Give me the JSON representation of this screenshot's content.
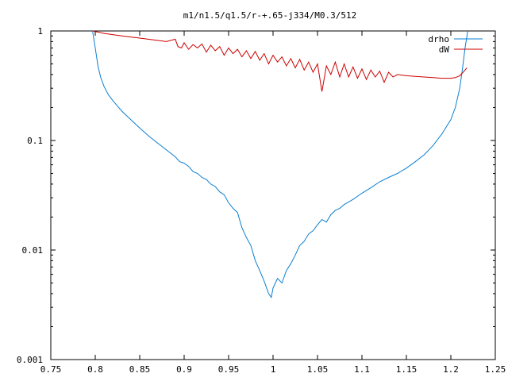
{
  "chart_data": {
    "type": "line",
    "title": "m1/n1.5/q1.5/r-+.65-j334/M0.3/512",
    "xlabel": "",
    "ylabel": "",
    "xlim": [
      0.75,
      1.25
    ],
    "ylim": [
      0.001,
      1
    ],
    "y_scale": "log",
    "grid": false,
    "legend_position": "top-right",
    "x_ticks": [
      0.75,
      0.8,
      0.85,
      0.9,
      0.95,
      1,
      1.05,
      1.1,
      1.15,
      1.2,
      1.25
    ],
    "x_tick_labels": [
      "0.75",
      "0.8",
      "0.85",
      "0.9",
      "0.95",
      "1",
      "1.05",
      "1.1",
      "1.15",
      "1.2",
      "1.25"
    ],
    "y_ticks": [
      0.001,
      0.01,
      0.1,
      1
    ],
    "y_tick_labels": [
      "0.001",
      "0.01",
      "0.1",
      "1"
    ],
    "series": [
      {
        "name": "drho",
        "color": "#0a7fd0",
        "points": [
          [
            0.797,
            1.0
          ],
          [
            0.8,
            0.7
          ],
          [
            0.803,
            0.48
          ],
          [
            0.806,
            0.38
          ],
          [
            0.81,
            0.31
          ],
          [
            0.815,
            0.26
          ],
          [
            0.82,
            0.23
          ],
          [
            0.83,
            0.185
          ],
          [
            0.84,
            0.155
          ],
          [
            0.85,
            0.13
          ],
          [
            0.86,
            0.11
          ],
          [
            0.87,
            0.095
          ],
          [
            0.88,
            0.082
          ],
          [
            0.89,
            0.071
          ],
          [
            0.895,
            0.064
          ],
          [
            0.9,
            0.062
          ],
          [
            0.905,
            0.058
          ],
          [
            0.91,
            0.052
          ],
          [
            0.915,
            0.05
          ],
          [
            0.92,
            0.046
          ],
          [
            0.925,
            0.044
          ],
          [
            0.93,
            0.04
          ],
          [
            0.935,
            0.038
          ],
          [
            0.94,
            0.034
          ],
          [
            0.945,
            0.032
          ],
          [
            0.95,
            0.027
          ],
          [
            0.955,
            0.024
          ],
          [
            0.96,
            0.022
          ],
          [
            0.965,
            0.016
          ],
          [
            0.97,
            0.013
          ],
          [
            0.975,
            0.011
          ],
          [
            0.98,
            0.008
          ],
          [
            0.985,
            0.0065
          ],
          [
            0.99,
            0.0052
          ],
          [
            0.995,
            0.004
          ],
          [
            0.998,
            0.0037
          ],
          [
            1.0,
            0.0045
          ],
          [
            1.005,
            0.0055
          ],
          [
            1.01,
            0.005
          ],
          [
            1.015,
            0.0065
          ],
          [
            1.02,
            0.0075
          ],
          [
            1.025,
            0.009
          ],
          [
            1.03,
            0.011
          ],
          [
            1.035,
            0.012
          ],
          [
            1.04,
            0.014
          ],
          [
            1.045,
            0.015
          ],
          [
            1.05,
            0.017
          ],
          [
            1.055,
            0.019
          ],
          [
            1.06,
            0.018
          ],
          [
            1.065,
            0.021
          ],
          [
            1.07,
            0.023
          ],
          [
            1.075,
            0.024
          ],
          [
            1.08,
            0.026
          ],
          [
            1.09,
            0.029
          ],
          [
            1.1,
            0.033
          ],
          [
            1.11,
            0.037
          ],
          [
            1.12,
            0.042
          ],
          [
            1.13,
            0.046
          ],
          [
            1.14,
            0.05
          ],
          [
            1.15,
            0.056
          ],
          [
            1.16,
            0.064
          ],
          [
            1.17,
            0.074
          ],
          [
            1.18,
            0.09
          ],
          [
            1.19,
            0.115
          ],
          [
            1.2,
            0.155
          ],
          [
            1.205,
            0.2
          ],
          [
            1.21,
            0.3
          ],
          [
            1.213,
            0.45
          ],
          [
            1.216,
            0.7
          ],
          [
            1.219,
            1.0
          ]
        ]
      },
      {
        "name": "dW",
        "color": "#cc0000",
        "points": [
          [
            0.797,
            1.0
          ],
          [
            0.81,
            0.95
          ],
          [
            0.83,
            0.9
          ],
          [
            0.85,
            0.86
          ],
          [
            0.87,
            0.82
          ],
          [
            0.88,
            0.8
          ],
          [
            0.89,
            0.84
          ],
          [
            0.893,
            0.72
          ],
          [
            0.897,
            0.7
          ],
          [
            0.9,
            0.78
          ],
          [
            0.905,
            0.68
          ],
          [
            0.91,
            0.75
          ],
          [
            0.915,
            0.7
          ],
          [
            0.92,
            0.76
          ],
          [
            0.925,
            0.64
          ],
          [
            0.93,
            0.74
          ],
          [
            0.935,
            0.66
          ],
          [
            0.94,
            0.72
          ],
          [
            0.945,
            0.6
          ],
          [
            0.95,
            0.7
          ],
          [
            0.955,
            0.62
          ],
          [
            0.96,
            0.68
          ],
          [
            0.965,
            0.58
          ],
          [
            0.97,
            0.66
          ],
          [
            0.975,
            0.56
          ],
          [
            0.98,
            0.65
          ],
          [
            0.985,
            0.54
          ],
          [
            0.99,
            0.62
          ],
          [
            0.995,
            0.5
          ],
          [
            1.0,
            0.6
          ],
          [
            1.005,
            0.52
          ],
          [
            1.01,
            0.58
          ],
          [
            1.015,
            0.48
          ],
          [
            1.02,
            0.56
          ],
          [
            1.025,
            0.46
          ],
          [
            1.03,
            0.55
          ],
          [
            1.035,
            0.44
          ],
          [
            1.04,
            0.52
          ],
          [
            1.045,
            0.42
          ],
          [
            1.05,
            0.5
          ],
          [
            1.055,
            0.28
          ],
          [
            1.06,
            0.48
          ],
          [
            1.065,
            0.4
          ],
          [
            1.07,
            0.52
          ],
          [
            1.075,
            0.38
          ],
          [
            1.08,
            0.5
          ],
          [
            1.085,
            0.38
          ],
          [
            1.09,
            0.47
          ],
          [
            1.095,
            0.37
          ],
          [
            1.1,
            0.45
          ],
          [
            1.105,
            0.36
          ],
          [
            1.11,
            0.44
          ],
          [
            1.115,
            0.38
          ],
          [
            1.12,
            0.43
          ],
          [
            1.125,
            0.34
          ],
          [
            1.13,
            0.42
          ],
          [
            1.135,
            0.38
          ],
          [
            1.14,
            0.4
          ],
          [
            1.15,
            0.39
          ],
          [
            1.16,
            0.385
          ],
          [
            1.17,
            0.38
          ],
          [
            1.18,
            0.375
          ],
          [
            1.19,
            0.37
          ],
          [
            1.2,
            0.37
          ],
          [
            1.205,
            0.375
          ],
          [
            1.21,
            0.39
          ],
          [
            1.215,
            0.43
          ],
          [
            1.218,
            0.46
          ]
        ]
      }
    ]
  }
}
